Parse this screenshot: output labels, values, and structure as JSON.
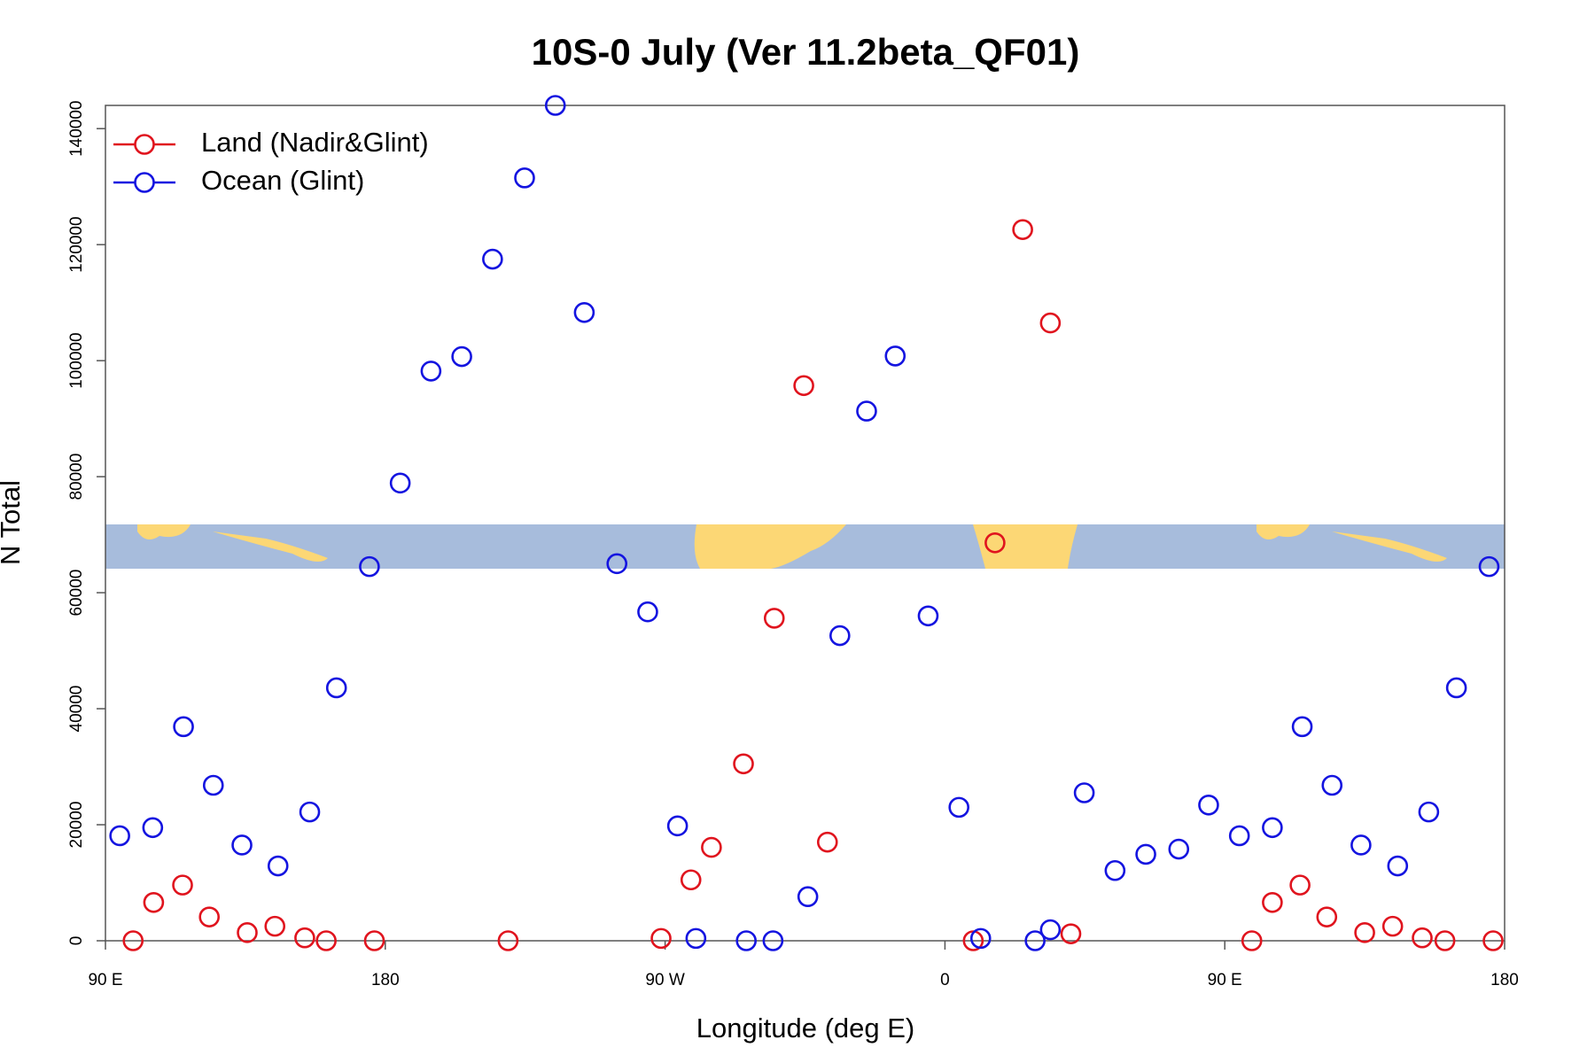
{
  "chart_data": {
    "type": "scatter",
    "title": "10S-0 July (Ver 11.2beta_QF01)",
    "x_label": "Longitude (deg E)",
    "y_label": "N Total",
    "xlim": [
      90,
      540
    ],
    "ylim": [
      0,
      144000
    ],
    "xticks": [
      {
        "value": 90,
        "label": "90 E"
      },
      180,
      {
        "value": 270,
        "label": "90 W"
      },
      {
        "value": 360,
        "label": "0"
      },
      {
        "value": 450,
        "label": "90 E"
      },
      {
        "value": 540,
        "label": "180"
      }
    ],
    "yticks": [
      0,
      20000,
      40000,
      60000,
      80000,
      100000,
      120000,
      140000
    ],
    "legend": "top-left",
    "series": [
      {
        "name": "Land (Nadir&Glint)",
        "color": "#e0141e",
        "x": [
          98.9,
          105.5,
          114.8,
          123.4,
          135.6,
          144.5,
          154.1,
          161.0,
          176.5,
          219.5,
          268.7,
          278.3,
          284.9,
          295.2,
          305.1,
          314.6,
          322.2,
          369.1,
          376.1,
          385.0,
          393.9,
          400.5,
          458.7,
          465.3,
          474.2,
          482.8,
          495.0,
          504.0,
          513.5,
          520.8,
          536.3
        ],
        "values": [
          0,
          6600,
          9600,
          4100,
          1400,
          2500,
          500,
          0,
          0,
          0,
          400,
          10500,
          16100,
          30500,
          55600,
          95700,
          17000,
          0,
          68600,
          122600,
          106500,
          1200,
          0,
          6600,
          9600,
          4100,
          1400,
          2500,
          500,
          0,
          0
        ]
      },
      {
        "name": "Ocean (Glint)",
        "color": "#1414e0",
        "x": [
          94.6,
          105.2,
          115.1,
          124.7,
          133.9,
          145.5,
          155.7,
          164.3,
          174.9,
          184.8,
          194.7,
          204.6,
          214.5,
          224.8,
          234.7,
          244.0,
          254.5,
          264.4,
          274.0,
          279.9,
          296.1,
          304.7,
          315.9,
          326.2,
          334.8,
          344.0,
          354.6,
          364.5,
          371.5,
          389.0,
          393.9,
          404.8,
          414.7,
          424.6,
          435.2,
          444.8,
          454.7,
          465.3,
          474.9,
          484.5,
          493.8,
          505.6,
          515.6,
          524.5,
          535.0
        ],
        "values": [
          18100,
          19500,
          36900,
          26800,
          16500,
          12900,
          22200,
          43600,
          64500,
          78900,
          98200,
          100700,
          117500,
          131500,
          144000,
          108300,
          65000,
          56700,
          19800,
          400,
          0,
          0,
          7600,
          52600,
          91300,
          100800,
          56000,
          23000,
          400,
          0,
          1900,
          25500,
          12100,
          14900,
          15800,
          23400,
          18100,
          19500,
          36900,
          26800,
          16500,
          12900,
          22200,
          43600,
          64500
        ]
      }
    ]
  }
}
